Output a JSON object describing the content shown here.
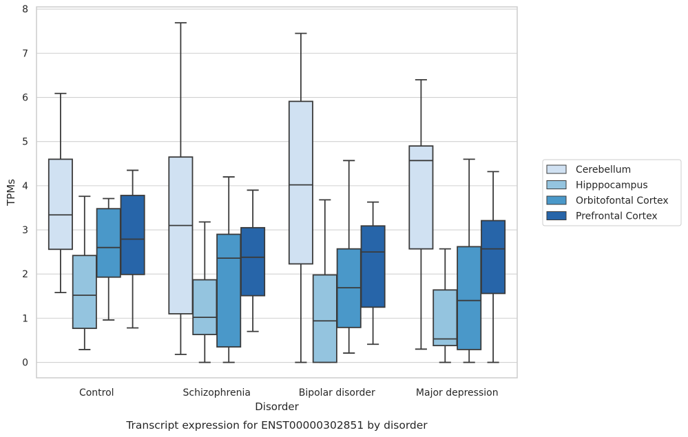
{
  "chart_data": {
    "type": "box",
    "title": "",
    "caption": "Transcript expression for ENST00000302851 by disorder",
    "xlabel": "Disorder",
    "ylabel": "TPMs",
    "ylim": [
      -0.35,
      8.05
    ],
    "yticks": [
      "0",
      "1",
      "2",
      "3",
      "4",
      "5",
      "6",
      "7",
      "8"
    ],
    "grid": true,
    "legend_position": "right",
    "categories": [
      "Control",
      "Schizophrenia",
      "Bipolar disorder",
      "Major depression"
    ],
    "series": [
      {
        "name": "Cerebellum",
        "color": "#d0e1f2",
        "boxes": [
          {
            "whislo": 1.58,
            "q1": 2.56,
            "med": 3.34,
            "q3": 4.6,
            "whishi": 6.09
          },
          {
            "whislo": 0.18,
            "q1": 1.1,
            "med": 3.1,
            "q3": 4.65,
            "whishi": 7.69
          },
          {
            "whislo": 0.0,
            "q1": 2.23,
            "med": 4.02,
            "q3": 5.91,
            "whishi": 7.45
          },
          {
            "whislo": 0.3,
            "q1": 2.57,
            "med": 4.57,
            "q3": 4.9,
            "whishi": 6.4
          }
        ]
      },
      {
        "name": "Hipppocampus",
        "color": "#94c4df",
        "boxes": [
          {
            "whislo": 0.29,
            "q1": 0.77,
            "med": 1.52,
            "q3": 2.42,
            "whishi": 3.76
          },
          {
            "whislo": 0.0,
            "q1": 0.63,
            "med": 1.02,
            "q3": 1.87,
            "whishi": 3.18
          },
          {
            "whislo": 0.0,
            "q1": 0.0,
            "med": 0.94,
            "q3": 1.98,
            "whishi": 3.68
          },
          {
            "whislo": 0.0,
            "q1": 0.38,
            "med": 0.53,
            "q3": 1.64,
            "whishi": 2.57
          }
        ]
      },
      {
        "name": "Orbitofontal Cortex",
        "color": "#4a98c9",
        "boxes": [
          {
            "whislo": 0.96,
            "q1": 1.93,
            "med": 2.6,
            "q3": 3.48,
            "whishi": 3.71
          },
          {
            "whislo": 0.0,
            "q1": 0.35,
            "med": 2.36,
            "q3": 2.9,
            "whishi": 4.2
          },
          {
            "whislo": 0.21,
            "q1": 0.79,
            "med": 1.69,
            "q3": 2.57,
            "whishi": 4.57
          },
          {
            "whislo": 0.0,
            "q1": 0.29,
            "med": 1.4,
            "q3": 2.62,
            "whishi": 4.6
          }
        ]
      },
      {
        "name": "Prefrontal Cortex",
        "color": "#2765a9",
        "boxes": [
          {
            "whislo": 0.78,
            "q1": 1.99,
            "med": 2.79,
            "q3": 3.78,
            "whishi": 4.35
          },
          {
            "whislo": 0.7,
            "q1": 1.51,
            "med": 2.38,
            "q3": 3.05,
            "whishi": 3.9
          },
          {
            "whislo": 0.41,
            "q1": 1.25,
            "med": 2.5,
            "q3": 3.09,
            "whishi": 3.63
          },
          {
            "whislo": 0.0,
            "q1": 1.56,
            "med": 2.57,
            "q3": 3.21,
            "whishi": 4.32
          }
        ]
      }
    ]
  }
}
